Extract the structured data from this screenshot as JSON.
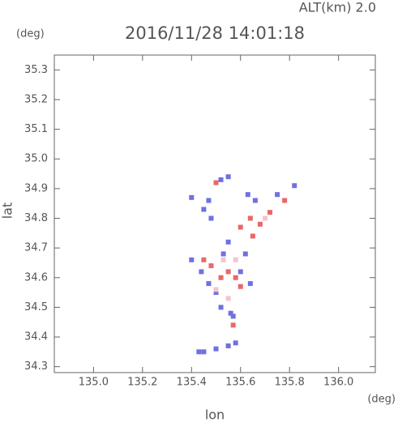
{
  "chart_data": {
    "type": "scatter",
    "title": "2016/11/28 14:01:18",
    "altitude_label": "ALT(km)  2.0",
    "y_unit": "(deg)",
    "x_unit": "(deg)",
    "xlabel": "lon",
    "ylabel": "lat",
    "xlim": [
      134.84,
      136.15
    ],
    "ylim": [
      34.28,
      35.35
    ],
    "xticks": [
      {
        "value": 135.0,
        "label": "135.0"
      },
      135.2,
      135.4,
      135.6,
      135.8,
      {
        "value": 136.0,
        "label": "136.0"
      }
    ],
    "yticks": [
      35.3,
      35.2,
      35.1,
      {
        "value": 35.0,
        "label": "35.0"
      },
      34.9,
      34.8,
      34.7,
      34.6,
      34.5,
      34.4,
      34.3
    ],
    "series": [
      {
        "color": "#7070e0",
        "x": [
          135.52,
          135.55,
          135.4,
          135.47,
          135.45,
          135.48,
          135.63,
          135.66,
          135.75,
          135.82,
          135.55,
          135.53,
          135.44,
          135.47,
          135.6,
          135.62,
          135.5,
          135.52,
          135.56,
          135.57,
          135.45,
          135.5,
          135.55,
          135.43,
          135.58,
          135.64,
          135.4
        ],
        "y": [
          34.93,
          34.94,
          34.87,
          34.86,
          34.83,
          34.8,
          34.88,
          34.86,
          34.88,
          34.91,
          34.72,
          34.68,
          34.62,
          34.58,
          34.62,
          34.68,
          34.55,
          34.5,
          34.48,
          34.47,
          34.35,
          34.36,
          34.37,
          34.35,
          34.38,
          34.58,
          34.66
        ]
      },
      {
        "color": "#e86868",
        "x": [
          135.5,
          135.64,
          135.68,
          135.72,
          135.6,
          135.48,
          135.55,
          135.58,
          135.52,
          135.6,
          135.57,
          135.45,
          135.78,
          135.65
        ],
        "y": [
          34.92,
          34.8,
          34.78,
          34.82,
          34.77,
          34.64,
          34.62,
          34.6,
          34.6,
          34.57,
          34.44,
          34.66,
          34.86,
          34.74
        ]
      },
      {
        "color": "#f3c4cc",
        "x": [
          135.53,
          135.58,
          135.5,
          135.7,
          135.55
        ],
        "y": [
          34.66,
          34.66,
          34.56,
          34.8,
          34.53
        ]
      }
    ]
  }
}
